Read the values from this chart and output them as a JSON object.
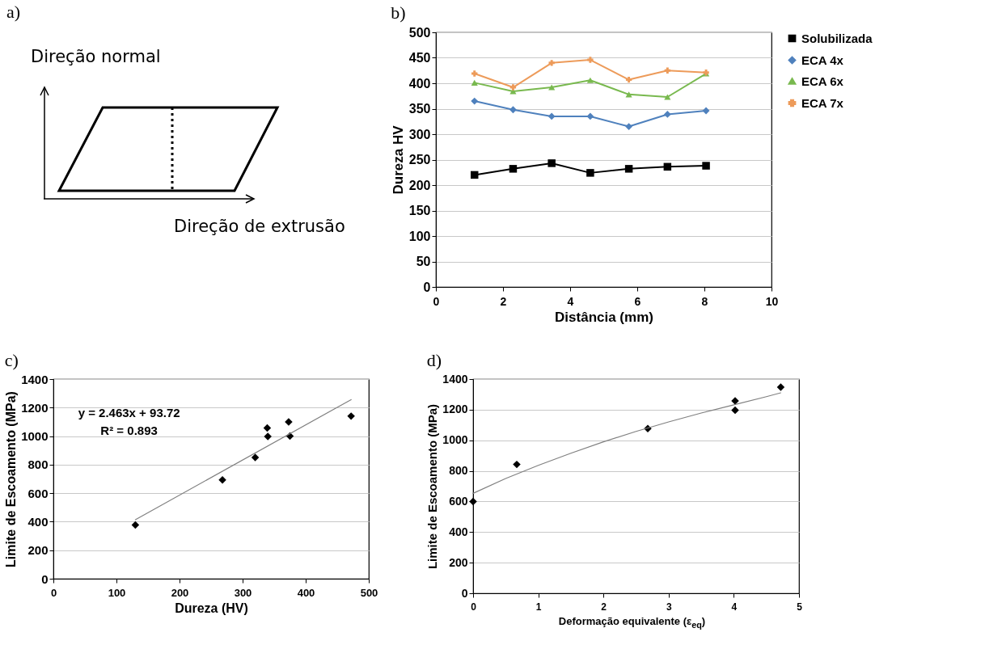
{
  "chart_data": [
    {
      "type": "other",
      "title": "a)",
      "annotations": [
        "Direção normal",
        "Direção de extrusão"
      ]
    },
    {
      "type": "line",
      "title": "b)",
      "xlabel": "Distância (mm)",
      "ylabel": "Dureza HV",
      "x": [
        1.15,
        2.3,
        3.45,
        4.6,
        5.75,
        6.9,
        8.05
      ],
      "xlim": [
        0,
        10
      ],
      "xticks": [
        0,
        2,
        4,
        6,
        8,
        10
      ],
      "ylim": [
        0,
        500
      ],
      "yticks": [
        0,
        50,
        100,
        150,
        200,
        250,
        300,
        350,
        400,
        450,
        500
      ],
      "grid": "y",
      "legend": "right",
      "series": [
        {
          "name": "Solubilizada",
          "color": "#000000",
          "marker": "square",
          "values": [
            220,
            232,
            243,
            224,
            232,
            236,
            238
          ]
        },
        {
          "name": "ECA 4x",
          "color": "#4f81bd",
          "marker": "diamond",
          "values": [
            365,
            348,
            335,
            335,
            315,
            339,
            346
          ]
        },
        {
          "name": "ECA 6x",
          "color": "#79b94f",
          "marker": "triangle",
          "values": [
            401,
            384,
            392,
            406,
            378,
            373,
            419
          ]
        },
        {
          "name": "ECA 7x",
          "color": "#ed9b5a",
          "marker": "cross",
          "values": [
            419,
            392,
            440,
            446,
            407,
            425,
            421
          ]
        }
      ]
    },
    {
      "type": "scatter",
      "title": "c)",
      "xlabel": "Dureza (HV)",
      "ylabel": "Limite de Escoamento (MPa)",
      "xlim": [
        0,
        500
      ],
      "xticks": [
        0,
        100,
        200,
        300,
        400,
        500
      ],
      "ylim": [
        0,
        1400
      ],
      "yticks": [
        0,
        200,
        400,
        600,
        800,
        1000,
        1200,
        1400
      ],
      "grid": "y",
      "marker": "diamond",
      "annotations": [
        "y = 2.463x + 93.72",
        "R² = 0.893"
      ],
      "series": [
        {
          "color": "#000000",
          "x": [
            130,
            268,
            320,
            339,
            340,
            373,
            375,
            472
          ],
          "values": [
            377,
            693,
            850,
            1057,
            998,
            1100,
            1000,
            1140
          ]
        },
        {
          "type": "line",
          "marker": "none",
          "color": "#808080",
          "x": [
            130,
            472
          ],
          "values": [
            414,
            1256
          ]
        }
      ]
    },
    {
      "type": "scatter",
      "title": "d)",
      "xlabel": "Deformação equivalente (ε$_{eq}$)",
      "ylabel": "Limite de Escoamento (MPa)",
      "xlim": [
        0,
        5
      ],
      "xticks": [
        0,
        1,
        2,
        3,
        4,
        5
      ],
      "ylim": [
        0,
        1400
      ],
      "yticks": [
        0,
        200,
        400,
        600,
        800,
        1000,
        1200,
        1400
      ],
      "grid": "y",
      "marker": "diamond",
      "series": [
        {
          "color": "#000000",
          "x": [
            0,
            0.67,
            2.68,
            4.02,
            4.02,
            4.72
          ],
          "values": [
            600,
            842,
            1076,
            1257,
            1196,
            1347
          ]
        },
        {
          "type": "line",
          "marker": "none",
          "color": "#808080",
          "x": [
            0,
            0.5,
            1,
            1.5,
            2,
            2.5,
            3,
            3.5,
            4,
            4.5,
            4.72
          ],
          "values": [
            653,
            750,
            836,
            915,
            990,
            1058,
            1120,
            1178,
            1232,
            1285,
            1310
          ]
        }
      ]
    }
  ]
}
